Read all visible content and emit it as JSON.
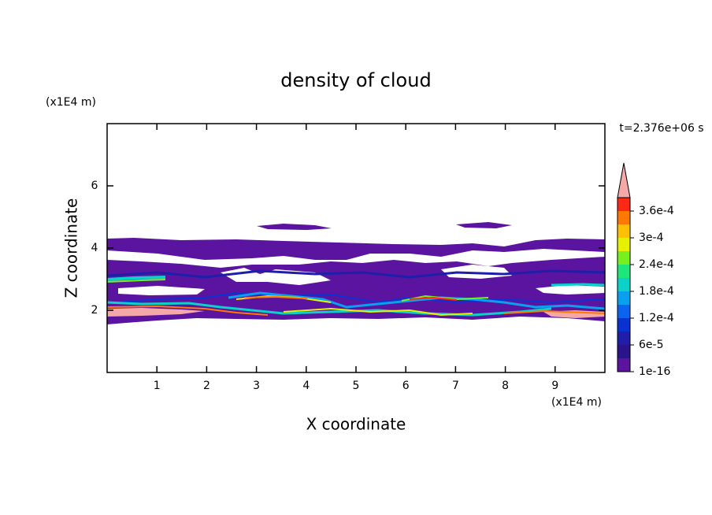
{
  "chart_data": {
    "type": "contour",
    "title": "density of cloud",
    "x_label": "X coordinate",
    "y_label": "Z coordinate",
    "x_unit_label": "(x1E4 m)",
    "y_unit_label": "(x1E4 m)",
    "annotation": "t=2.376e+06 s",
    "xlim": [
      0,
      10
    ],
    "ylim": [
      0,
      8
    ],
    "xticks": [
      1,
      2,
      3,
      4,
      5,
      6,
      7,
      8,
      9
    ],
    "yticks": [
      2,
      4,
      6
    ],
    "colorbar": {
      "lim": [
        1e-16,
        0.00039
      ],
      "levels": [
        1e-16,
        3e-05,
        6e-05,
        9e-05,
        0.00012,
        0.00015,
        0.00018,
        0.00021,
        0.00024,
        0.00027,
        0.0003,
        0.00033,
        0.00036,
        0.00039
      ],
      "colors": [
        "#5a14a0",
        "#2a148c",
        "#1e1eaa",
        "#0a32d2",
        "#0a64f0",
        "#0aa0f0",
        "#0ad2c8",
        "#1ee678",
        "#78f01e",
        "#e6f000",
        "#ffc000",
        "#ff7800",
        "#ff2814"
      ],
      "extend_color": "#f4a8a8",
      "ticks": [
        {
          "value": 1e-16,
          "label": "1e-16"
        },
        {
          "value": 6e-05,
          "label": "6e-5"
        },
        {
          "value": 0.00012,
          "label": "1.2e-4"
        },
        {
          "value": 0.00018,
          "label": "1.8e-4"
        },
        {
          "value": 0.00024,
          "label": "2.4e-4"
        },
        {
          "value": 0.0003,
          "label": "3e-4"
        },
        {
          "value": 0.00036,
          "label": "3.6e-4"
        }
      ]
    }
  }
}
